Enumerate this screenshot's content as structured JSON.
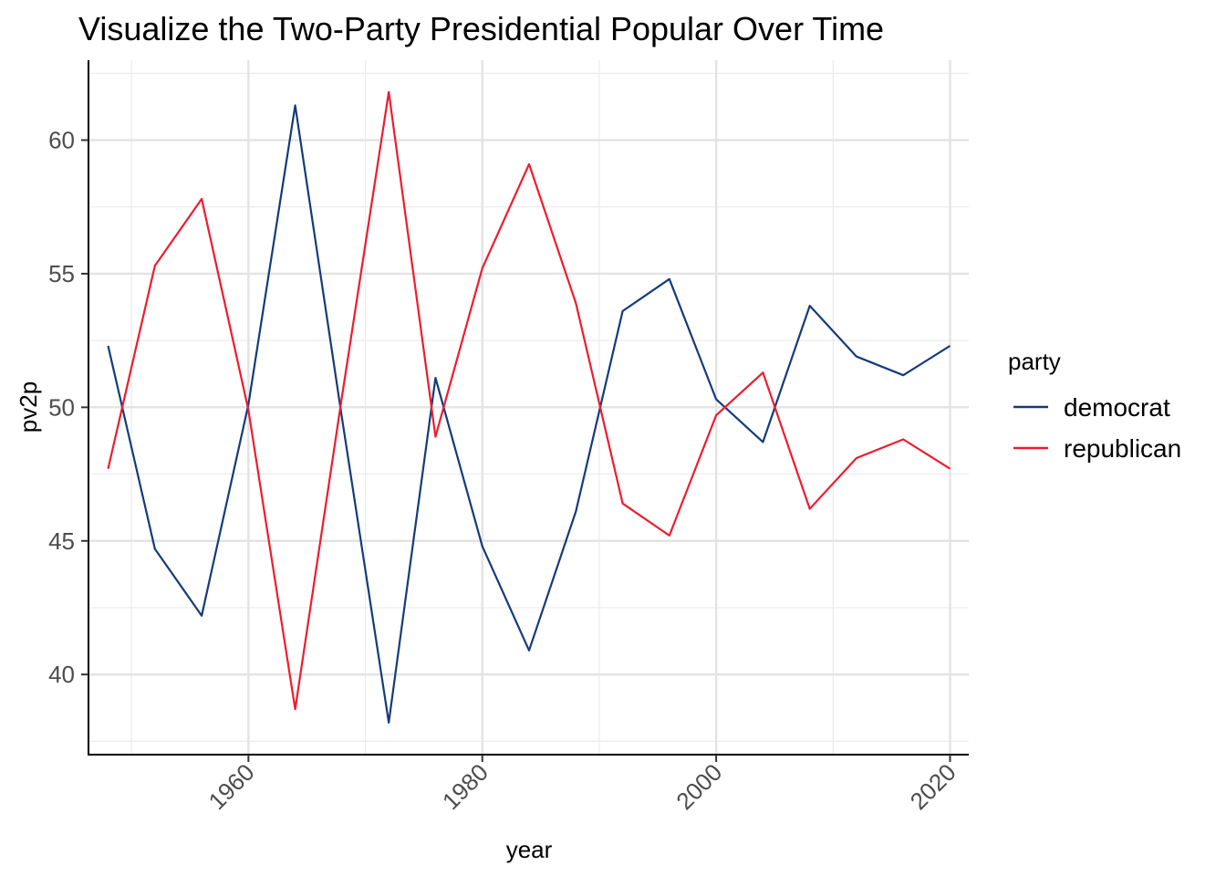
{
  "chart_data": {
    "type": "line",
    "title": "Visualize the Two-Party Presidential Popular Over Time",
    "xlabel": "year",
    "ylabel": "pv2p",
    "xlim": [
      1946.4,
      2021.6
    ],
    "ylim": [
      37.0,
      62.99
    ],
    "x_ticks": [
      1960,
      1980,
      2000,
      2020
    ],
    "x_minor_ticks": [
      1950,
      1970,
      1990,
      2010
    ],
    "y_ticks": [
      40,
      45,
      50,
      55,
      60
    ],
    "y_minor_ticks": [
      37.5,
      42.5,
      47.5,
      52.5,
      57.5,
      62.5
    ],
    "grid": true,
    "legend": {
      "title": "party",
      "position": "right"
    },
    "x": [
      1948,
      1952,
      1956,
      1960,
      1964,
      1968,
      1972,
      1976,
      1980,
      1984,
      1988,
      1992,
      1996,
      2000,
      2004,
      2008,
      2012,
      2016,
      2020
    ],
    "series": [
      {
        "name": "democrat",
        "color": "#143B7A",
        "values": [
          52.3,
          44.7,
          42.2,
          50.1,
          61.3,
          49.6,
          38.2,
          51.1,
          44.8,
          40.9,
          46.1,
          53.6,
          54.8,
          50.3,
          48.7,
          53.8,
          51.9,
          51.2,
          52.3
        ]
      },
      {
        "name": "republican",
        "color": "#EE1C2E",
        "values": [
          47.7,
          55.3,
          57.8,
          49.9,
          38.7,
          50.4,
          61.8,
          48.9,
          55.2,
          59.1,
          53.9,
          46.4,
          45.2,
          49.7,
          51.3,
          46.2,
          48.1,
          48.8,
          47.7
        ]
      }
    ]
  }
}
